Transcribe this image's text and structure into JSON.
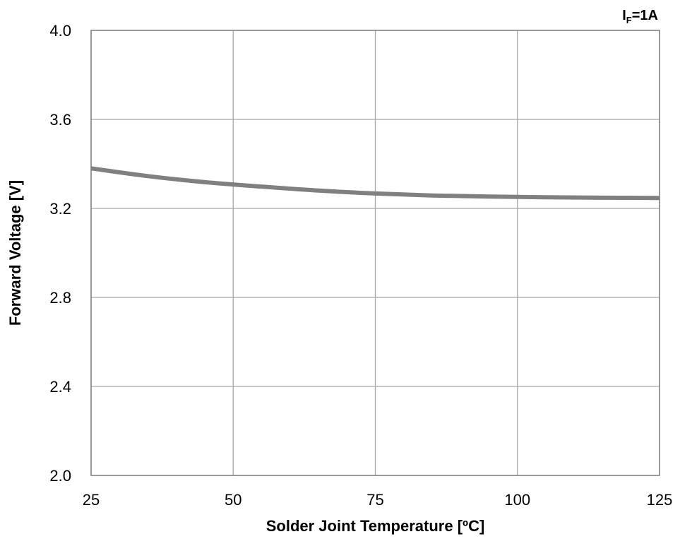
{
  "chart_data": {
    "type": "line",
    "title": "",
    "annotation": {
      "prefix": "I",
      "subscript": "F",
      "suffix": "=1A"
    },
    "xlabel": "Solder Joint Temperature [ºC]",
    "ylabel": "Forward Voltage [V]",
    "xlim": [
      25,
      125
    ],
    "ylim": [
      2.0,
      4.0
    ],
    "xticks": [
      25,
      50,
      75,
      100,
      125
    ],
    "xtick_labels": [
      "25",
      "50",
      "75",
      "100",
      "125"
    ],
    "yticks": [
      2.0,
      2.4,
      2.8,
      3.2,
      3.6,
      4.0
    ],
    "ytick_labels": [
      "2.0",
      "2.4",
      "2.8",
      "3.2",
      "3.6",
      "4.0"
    ],
    "grid": true,
    "legend": "none",
    "colors": {
      "line": "#808080",
      "grid": "#a6a6a6",
      "frame": "#808080"
    },
    "series": [
      {
        "x": [
          25,
          35,
          45,
          55,
          65,
          75,
          85,
          95,
          105,
          115,
          125
        ],
        "values": [
          3.38,
          3.345,
          3.318,
          3.298,
          3.28,
          3.267,
          3.258,
          3.253,
          3.25,
          3.248,
          3.247
        ]
      }
    ]
  }
}
